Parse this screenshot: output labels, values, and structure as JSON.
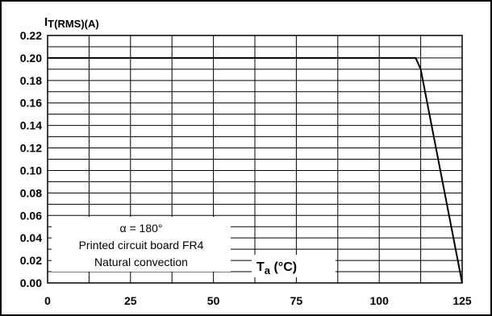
{
  "chart_data": {
    "type": "line",
    "ylabel": {
      "main": "I",
      "sub": "T(RMS)(A)"
    },
    "xlabel": {
      "main": "T",
      "sub": "a",
      "unit": " (°C)"
    },
    "xlim": [
      0,
      125
    ],
    "ylim": [
      0,
      0.22
    ],
    "x_ticks": [
      "0",
      "25",
      "50",
      "75",
      "100",
      "125"
    ],
    "y_ticks": [
      "0.00",
      "0.02",
      "0.04",
      "0.06",
      "0.08",
      "0.10",
      "0.12",
      "0.14",
      "0.16",
      "0.18",
      "0.20",
      "0.22"
    ],
    "grid": true,
    "series": [
      {
        "x": [
          0,
          111,
          112.5,
          125
        ],
        "y": [
          0.2,
          0.2,
          0.19,
          0.0
        ]
      }
    ],
    "annotations": [
      "α = 180°",
      "Printed circuit board FR4",
      "Natural convection"
    ],
    "line_color": "#000000"
  }
}
